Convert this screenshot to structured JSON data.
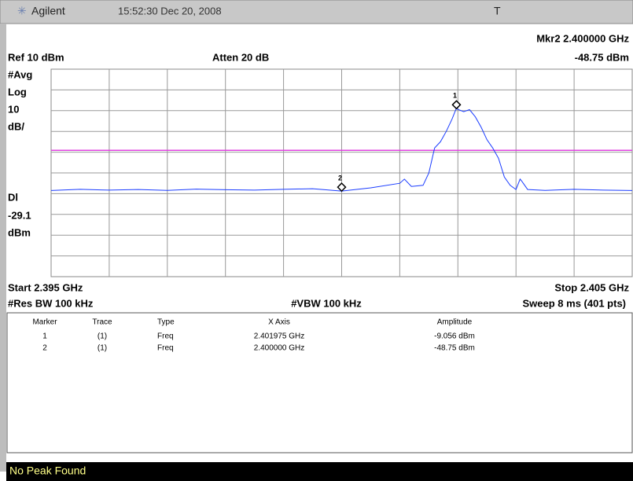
{
  "header": {
    "brand": "Agilent",
    "time": "15:52:30  Dec 20, 2008",
    "indicator": "T"
  },
  "chart_data": {
    "type": "line",
    "marker_readout": "Mkr2  2.400000 GHz",
    "marker_readout_amplitude": "-48.75 dBm",
    "ref_label": "Ref 10 dBm",
    "atten_label": "Atten 20 dB",
    "scale_labels": [
      "#Avg",
      "Log",
      "10",
      "dB/"
    ],
    "display_line_label": "Dl",
    "display_line": -29.1,
    "display_line_unit": "dBm",
    "display_line_color": "#e040e0",
    "start_label": "Start 2.395 GHz",
    "stop_label": "Stop 2.405 GHz",
    "rbw_label": "#Res BW 100 kHz",
    "vbw_label": "#VBW 100 kHz",
    "sweep_label": "Sweep 8 ms (401 pts)",
    "xlim": [
      2.395,
      2.405
    ],
    "ylim": [
      -90,
      10
    ],
    "grid": true,
    "color": "#1a3cff",
    "x": [
      2.395,
      2.3955,
      2.396,
      2.3965,
      2.397,
      2.3975,
      2.398,
      2.3985,
      2.399,
      2.3995,
      2.4,
      2.4005,
      2.401,
      2.40108,
      2.4012,
      2.4014,
      2.4015,
      2.4016,
      2.4017,
      2.4018,
      2.4019,
      2.40197,
      2.4021,
      2.4022,
      2.4023,
      2.4024,
      2.4025,
      2.4026,
      2.4027,
      2.4028,
      2.4029,
      2.403,
      2.40307,
      2.4031,
      2.4032,
      2.4035,
      2.404,
      2.4045,
      2.405
    ],
    "values": [
      -48.5,
      -47.9,
      -48.3,
      -48.0,
      -48.4,
      -47.8,
      -48.1,
      -48.3,
      -47.9,
      -47.6,
      -48.75,
      -47.2,
      -45.0,
      -43.0,
      -46.5,
      -46.0,
      -40.0,
      -28.0,
      -25.0,
      -20.0,
      -14.0,
      -9.056,
      -10.5,
      -9.5,
      -13.0,
      -18.0,
      -24.0,
      -28.0,
      -33.0,
      -42.0,
      -46.0,
      -48.0,
      -43.0,
      -44.0,
      -48.0,
      -48.4,
      -47.9,
      -48.3,
      -48.5
    ],
    "markers": [
      {
        "label": "1",
        "x": 2.401975,
        "y": -9.056
      },
      {
        "label": "2",
        "x": 2.4,
        "y": -48.75
      }
    ]
  },
  "marker_table": {
    "columns": [
      "Marker",
      "Trace",
      "Type",
      "X Axis",
      "Amplitude"
    ],
    "rows": [
      [
        "1",
        "(1)",
        "Freq",
        "2.401975 GHz",
        "-9.056 dBm"
      ],
      [
        "2",
        "(1)",
        "Freq",
        "2.400000 GHz",
        "-48.75 dBm"
      ]
    ]
  },
  "status": "No Peak Found"
}
